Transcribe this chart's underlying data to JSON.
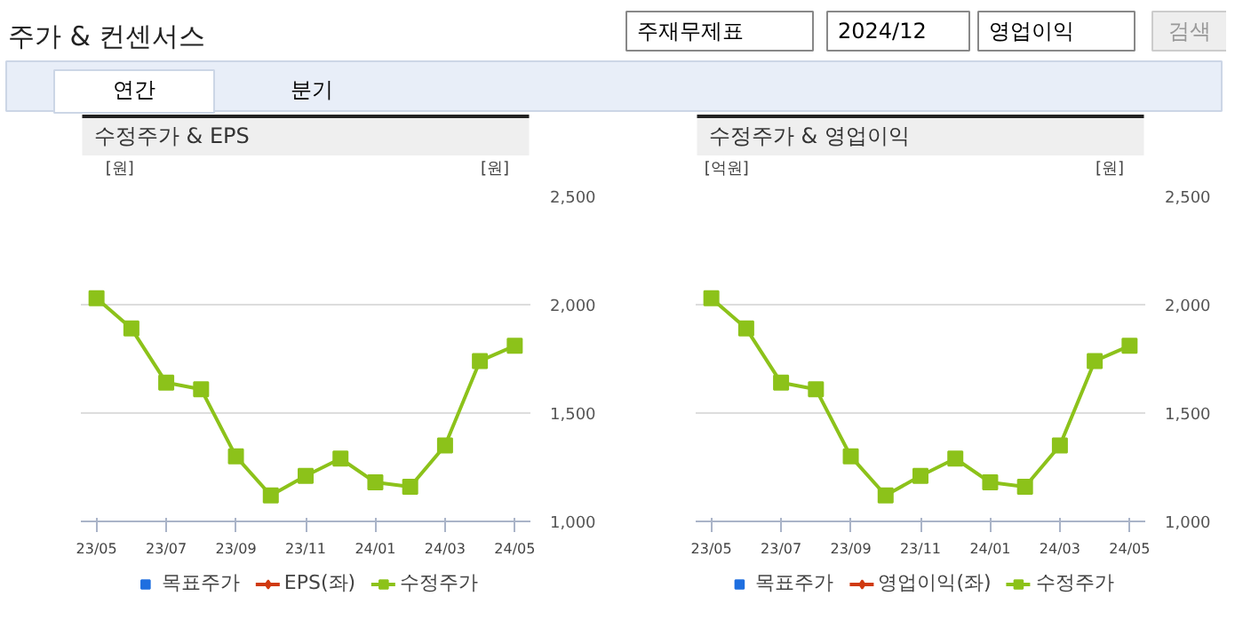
{
  "chart_data": [
    {
      "type": "other",
      "title": "주가 & 컨센서스",
      "annotations": [
        "주재무제표",
        "2024/12",
        "영업이익",
        "검색",
        "연간",
        "분기"
      ]
    },
    {
      "type": "line",
      "title": "수정주가 & EPS",
      "ylabel": "[원]",
      "y2label": "[원]",
      "categories": [
        "23/05",
        null,
        "23/07",
        null,
        "23/09",
        null,
        "23/11",
        null,
        "24/01",
        null,
        "24/03",
        null,
        "24/05"
      ],
      "series": [
        {
          "name": "목표주가",
          "type": "scatter",
          "marker": "square",
          "color": "#1f6fe0",
          "values": [
            null,
            null,
            null,
            null,
            null,
            null,
            null,
            null,
            null,
            null,
            null,
            null,
            null
          ]
        },
        {
          "name": "EPS(좌)",
          "type": "line",
          "marker": "diamond",
          "color": "#d03a10",
          "values": [
            null,
            null,
            null,
            null,
            null,
            null,
            null,
            null,
            null,
            null,
            null,
            null,
            null
          ]
        },
        {
          "name": "수정주가",
          "type": "line",
          "marker": "square",
          "color": "#8cc21a",
          "axis": "y2",
          "values": [
            2030,
            1890,
            1640,
            1610,
            1300,
            1120,
            1210,
            1290,
            1180,
            1160,
            1350,
            1740,
            1810
          ]
        }
      ],
      "y2lim": [
        1000,
        2500
      ],
      "y2ticks": [
        {
          "value": 1000,
          "label": "1,000"
        },
        {
          "value": 1500,
          "label": "1,500"
        },
        {
          "value": 2000,
          "label": "2,000"
        },
        {
          "value": 2500,
          "label": "2,500"
        }
      ],
      "grid": "y",
      "legend": "bottom"
    },
    {
      "type": "line",
      "title": "수정주가 & 영업이익",
      "ylabel": "[억원]",
      "y2label": "[원]",
      "categories": [
        "23/05",
        null,
        "23/07",
        null,
        "23/09",
        null,
        "23/11",
        null,
        "24/01",
        null,
        "24/03",
        null,
        "24/05"
      ],
      "series": [
        {
          "name": "목표주가",
          "type": "scatter",
          "marker": "square",
          "color": "#1f6fe0",
          "values": [
            null,
            null,
            null,
            null,
            null,
            null,
            null,
            null,
            null,
            null,
            null,
            null,
            null
          ]
        },
        {
          "name": "영업이익(좌)",
          "type": "line",
          "marker": "diamond",
          "color": "#d03a10",
          "values": [
            null,
            null,
            null,
            null,
            null,
            null,
            null,
            null,
            null,
            null,
            null,
            null,
            null
          ]
        },
        {
          "name": "수정주가",
          "type": "line",
          "marker": "square",
          "color": "#8cc21a",
          "axis": "y2",
          "values": [
            2030,
            1890,
            1640,
            1610,
            1300,
            1120,
            1210,
            1290,
            1180,
            1160,
            1350,
            1740,
            1810
          ]
        }
      ],
      "y2lim": [
        1000,
        2500
      ],
      "y2ticks": [
        {
          "value": 1000,
          "label": "1,000"
        },
        {
          "value": 1500,
          "label": "1,500"
        },
        {
          "value": 2000,
          "label": "2,000"
        },
        {
          "value": 2500,
          "label": "2,500"
        }
      ],
      "grid": "y",
      "legend": "bottom"
    }
  ]
}
